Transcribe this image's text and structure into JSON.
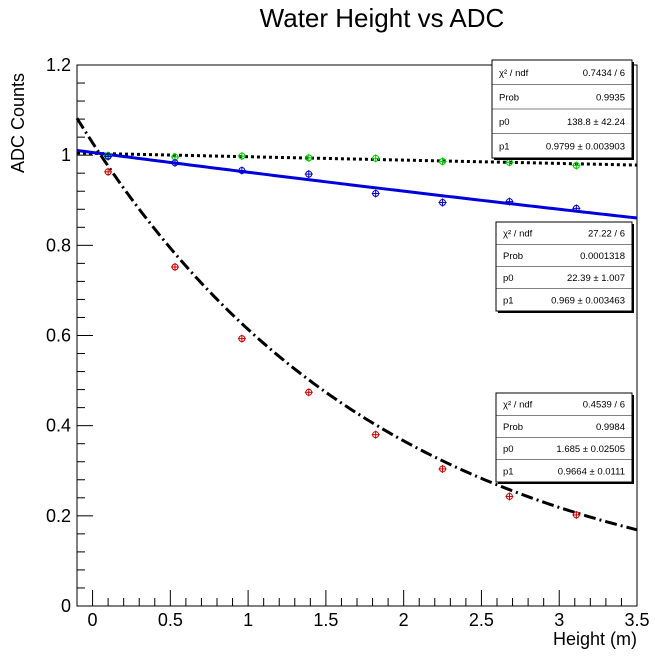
{
  "chart_data": {
    "type": "scatter",
    "title": "Water Height vs ADC",
    "xlabel": "Height (m)",
    "ylabel": "ADC Counts",
    "xlim": [
      -0.1,
      3.5
    ],
    "ylim": [
      0,
      1.2
    ],
    "x_ticks": [
      "0",
      "0.5",
      "1",
      "1.5",
      "2",
      "2.5",
      "3",
      "3.5"
    ],
    "y_ticks": [
      "0",
      "0.2",
      "0.4",
      "0.6",
      "0.8",
      "1",
      "1.2"
    ],
    "grid": false,
    "legend": "none",
    "series": [
      {
        "color": "#00cc00",
        "marker": "open-circle",
        "x": [
          0.1,
          0.53,
          0.96,
          1.39,
          1.82,
          2.25,
          2.68,
          3.11
        ],
        "y": [
          0.999,
          0.996,
          0.998,
          0.994,
          0.993,
          0.986,
          0.984,
          0.977
        ],
        "fit": {
          "form": "exponential",
          "p0": 138.8,
          "p1": 0.9799,
          "amplitude": 1.004,
          "decay_per_m": 0.0075,
          "color": "#000000",
          "style": "dotted"
        },
        "stats": [
          {
            "label": "χ² / ndf",
            "value": "0.7434 / 6"
          },
          {
            "label": "Prob",
            "value": "0.9935"
          },
          {
            "label": "p0",
            "value": "138.8 ± 42.24"
          },
          {
            "label": "p1",
            "value": "0.9799 ± 0.003903"
          }
        ]
      },
      {
        "color": "#0000cc",
        "marker": "open-circle",
        "x": [
          0.1,
          0.53,
          0.96,
          1.39,
          1.82,
          2.25,
          2.68,
          3.11
        ],
        "y": [
          0.997,
          0.983,
          0.966,
          0.958,
          0.915,
          0.895,
          0.897,
          0.882
        ],
        "fit": {
          "form": "exponential",
          "p0": 22.39,
          "p1": 0.969,
          "amplitude": 1.006,
          "decay_per_m": 0.0446,
          "color": "#0000dd",
          "style": "solid"
        },
        "stats": [
          {
            "label": "χ² / ndf",
            "value": "27.22 / 6"
          },
          {
            "label": "Prob",
            "value": "0.0001318"
          },
          {
            "label": "p0",
            "value": "22.39 ± 1.007"
          },
          {
            "label": "p1",
            "value": "0.969 ± 0.003463"
          }
        ]
      },
      {
        "color": "#cc0000",
        "marker": "open-circle",
        "x": [
          0.1,
          0.53,
          0.96,
          1.39,
          1.82,
          2.25,
          2.68,
          3.11
        ],
        "y": [
          0.963,
          0.752,
          0.593,
          0.474,
          0.38,
          0.304,
          0.243,
          0.202
        ],
        "fit": {
          "form": "exponential",
          "p0": 1.685,
          "p1": 0.9664,
          "amplitude": 1.0275,
          "decay_per_m": 0.5157,
          "color": "#000000",
          "style": "dash-dot"
        },
        "stats": [
          {
            "label": "χ² / ndf",
            "value": "0.4539 / 6"
          },
          {
            "label": "Prob",
            "value": "0.9984"
          },
          {
            "label": "p0",
            "value": "1.685 ± 0.02505"
          },
          {
            "label": "p1",
            "value": "0.9664 ± 0.0111"
          }
        ]
      }
    ]
  }
}
